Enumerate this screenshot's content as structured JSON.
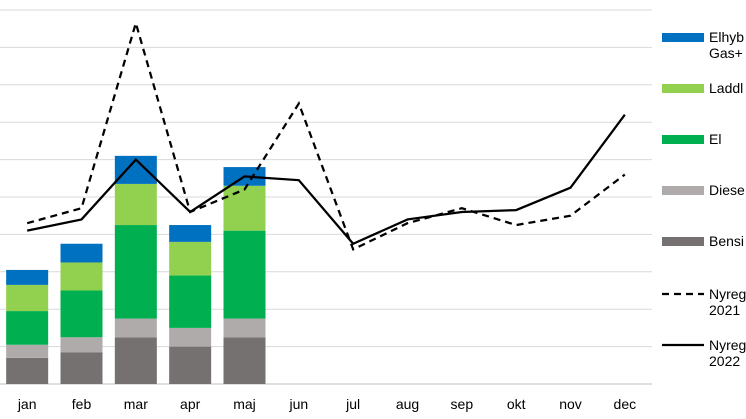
{
  "chart_data": {
    "type": "bar",
    "title": "",
    "xlabel": "",
    "ylabel": "",
    "categories": [
      "jan",
      "feb",
      "mar",
      "apr",
      "maj",
      "jun",
      "jul",
      "aug",
      "sep",
      "okt",
      "nov",
      "dec"
    ],
    "ylim": [
      0,
      10
    ],
    "grid": true,
    "legend_placement": "right",
    "stacked_series": [
      {
        "key": "bensin",
        "name": "Bensi",
        "color": "#767171",
        "values": [
          0.7,
          0.85,
          1.25,
          1.0,
          1.25
        ]
      },
      {
        "key": "diesel",
        "name": "Diese",
        "color": "#afabab",
        "values": [
          0.35,
          0.4,
          0.5,
          0.5,
          0.5
        ]
      },
      {
        "key": "el",
        "name": "El",
        "color": "#00b050",
        "values": [
          0.9,
          1.25,
          2.5,
          1.4,
          2.35
        ]
      },
      {
        "key": "laddhybrid",
        "name": "Laddl",
        "color": "#92d050",
        "values": [
          0.7,
          0.75,
          1.1,
          0.9,
          1.2
        ]
      },
      {
        "key": "elhybrid",
        "name": "Elhyb\nGas+",
        "color": "#0070c0",
        "values": [
          0.4,
          0.5,
          0.75,
          0.45,
          0.5
        ]
      }
    ],
    "line_series": [
      {
        "key": "nyreg2021",
        "name": "Nyreg\n2021",
        "color": "#000000",
        "dashed": true,
        "values": [
          4.3,
          4.7,
          9.65,
          4.6,
          5.2,
          7.5,
          3.6,
          4.3,
          4.7,
          4.25,
          4.5,
          5.6
        ]
      },
      {
        "key": "nyreg2022",
        "name": "Nyreg\n2022",
        "color": "#000000",
        "dashed": false,
        "values": [
          4.1,
          4.4,
          6.0,
          4.6,
          5.55,
          5.45,
          3.75,
          4.4,
          4.6,
          4.65,
          5.25,
          7.2
        ]
      }
    ]
  }
}
